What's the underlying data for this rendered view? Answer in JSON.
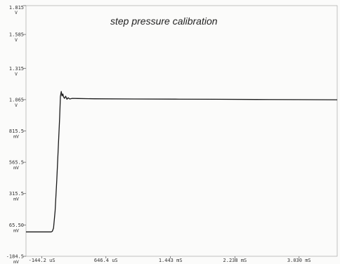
{
  "chart_data": {
    "type": "line",
    "title": "step pressure calibration",
    "xlabel": "",
    "ylabel": "",
    "x_unit": "µs",
    "xlim": [
      -340,
      3500
    ],
    "ylim": [
      -184.5,
      1815
    ],
    "grid": false,
    "y_ticks": [
      {
        "value": 1815,
        "label": "1.815",
        "unit": "V"
      },
      {
        "value": 1585,
        "label": "1.585",
        "unit": "V"
      },
      {
        "value": 1315,
        "label": "1.315",
        "unit": "V"
      },
      {
        "value": 1065,
        "label": "1.065",
        "unit": "V"
      },
      {
        "value": 815.5,
        "label": "815.5",
        "unit": "mV"
      },
      {
        "value": 565.5,
        "label": "565.5",
        "unit": "mV"
      },
      {
        "value": 315.5,
        "label": "315.5",
        "unit": "mV"
      },
      {
        "value": 65.5,
        "label": "65.50",
        "unit": "mV"
      },
      {
        "value": -184.5,
        "label": "-184.5",
        "unit": "mV"
      }
    ],
    "x_ticks": [
      {
        "value": -144.2,
        "label": "-144.2 uS"
      },
      {
        "value": 646.4,
        "label": "646.4 uS"
      },
      {
        "value": 1443,
        "label": "1.443 mS"
      },
      {
        "value": 2238,
        "label": "2.238 mS"
      },
      {
        "value": 3030,
        "label": "3.030 mS"
      }
    ],
    "series": [
      {
        "color": "#1a1a1a",
        "x": [
          -340,
          -100,
          -30,
          -15,
          0,
          20,
          40,
          60,
          75,
          85,
          95,
          105,
          115,
          125,
          135,
          150,
          165,
          180,
          200,
          230,
          300,
          500,
          1000,
          1500,
          2000,
          2500,
          3000,
          3500
        ],
        "y": [
          10,
          10,
          10,
          15,
          40,
          180,
          420,
          700,
          920,
          1090,
          1130,
          1095,
          1110,
          1085,
          1075,
          1092,
          1068,
          1080,
          1070,
          1075,
          1074,
          1072,
          1070,
          1069,
          1068,
          1066,
          1065,
          1064
        ]
      }
    ]
  }
}
